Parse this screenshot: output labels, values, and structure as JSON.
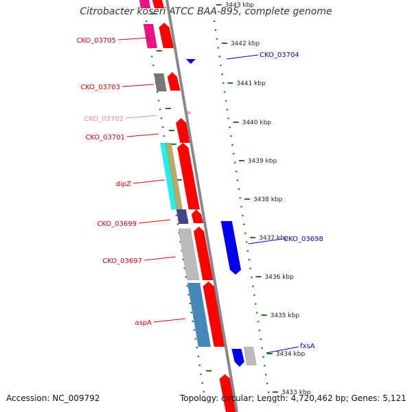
{
  "title": "Citrobacter koseri ATCC BAA-895, complete genome",
  "accession": "Accession: NC_009792",
  "summary": "Topology: circular; Length: 4,720,462 bp; Genes: 5,121",
  "scale": {
    "ticks": [
      {
        "label": "3443 kbp"
      },
      {
        "label": "3442 kbp"
      },
      {
        "label": "3441 kbp"
      },
      {
        "label": "3440 kbp"
      },
      {
        "label": "3439 kbp"
      },
      {
        "label": "3438 kbp"
      },
      {
        "label": "3437 kbp"
      },
      {
        "label": "3436 kbp"
      },
      {
        "label": "3435 kbp"
      },
      {
        "label": "3434 kbp"
      },
      {
        "label": "3433 kbp"
      }
    ]
  },
  "gene_labels": [
    {
      "name": "CKO_03705",
      "color": "#dd0000",
      "side": "left"
    },
    {
      "name": "CKO_03704",
      "color": "#0000cc",
      "side": "right"
    },
    {
      "name": "CKO_03703",
      "color": "#dd0000",
      "side": "left"
    },
    {
      "name": "CKO_03702",
      "color": "#ee88bb",
      "side": "left"
    },
    {
      "name": "CKO_03701",
      "color": "#dd0000",
      "side": "left"
    },
    {
      "name": "dipZ",
      "color": "#dd0000",
      "side": "left"
    },
    {
      "name": "CKO_03699",
      "color": "#dd0000",
      "side": "left"
    },
    {
      "name": "CKO_03698",
      "color": "#0000cc",
      "side": "right"
    },
    {
      "name": "CKO_03697",
      "color": "#dd0000",
      "side": "left"
    },
    {
      "name": "aspA",
      "color": "#dd0000",
      "side": "left"
    },
    {
      "name": "fxsA",
      "color": "#0000cc",
      "side": "right"
    }
  ],
  "colors": {
    "forward": "#ff0000",
    "reverse": "#0000ee",
    "backbone": "#888888",
    "gc_ticks": "#1a7a1a"
  }
}
